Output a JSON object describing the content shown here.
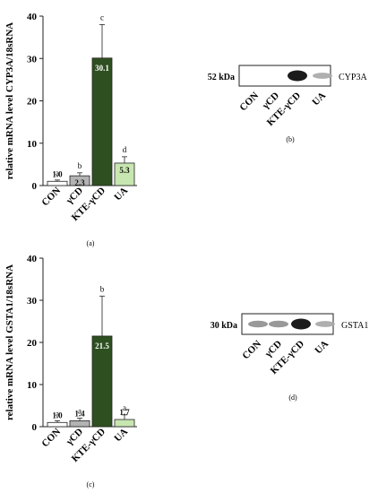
{
  "colors": {
    "CON": "#ffffff",
    "γCD": "#b3b3b3",
    "KTE-γCD": "#2e5020",
    "UA": "#c8e6b0",
    "axis": "#222222"
  },
  "chart_data": [
    {
      "panel": "(a)",
      "type": "bar",
      "ylabel": "relative mRNA level CYP3A/18sRNA",
      "ylim": [
        0,
        40
      ],
      "yticks": [
        0,
        10,
        20,
        30,
        40
      ],
      "categories": [
        "CON",
        "γCD",
        "KTE-γCD",
        "UA"
      ],
      "values": [
        1.0,
        2.3,
        30.1,
        5.3
      ],
      "value_labels": [
        "1.0",
        "2.3",
        "30.1",
        "5.3"
      ],
      "error_upper": [
        1.3,
        3.0,
        38.0,
        6.8
      ],
      "significance": [
        "a",
        "b",
        "c",
        "d"
      ]
    },
    {
      "panel": "(c)",
      "type": "bar",
      "ylabel": "relative mRNA level GSTA1/18sRNA",
      "ylim": [
        0,
        40
      ],
      "yticks": [
        0,
        10,
        20,
        30,
        40
      ],
      "categories": [
        "CON",
        "γCD",
        "KTE-γCD",
        "UA"
      ],
      "values": [
        1.0,
        1.4,
        21.5,
        1.7
      ],
      "value_labels": [
        "1.0",
        "1.4",
        "21.5",
        "1.7"
      ],
      "error_upper": [
        1.4,
        2.0,
        31.0,
        2.8
      ],
      "significance": [
        "a",
        "a",
        "b",
        "a"
      ]
    }
  ],
  "blots": [
    {
      "panel": "(b)",
      "kda": "52 kDa",
      "protein": "CYP3A",
      "lanes": [
        "CON",
        "γCD",
        "KTE-γCD",
        "UA"
      ],
      "band_intensity": [
        0.0,
        0.0,
        1.0,
        0.35
      ]
    },
    {
      "panel": "(d)",
      "kda": "30 kDa",
      "protein": "GSTA1",
      "lanes": [
        "CON",
        "γCD",
        "KTE-γCD",
        "UA"
      ],
      "band_intensity": [
        0.45,
        0.45,
        1.0,
        0.35
      ]
    }
  ]
}
